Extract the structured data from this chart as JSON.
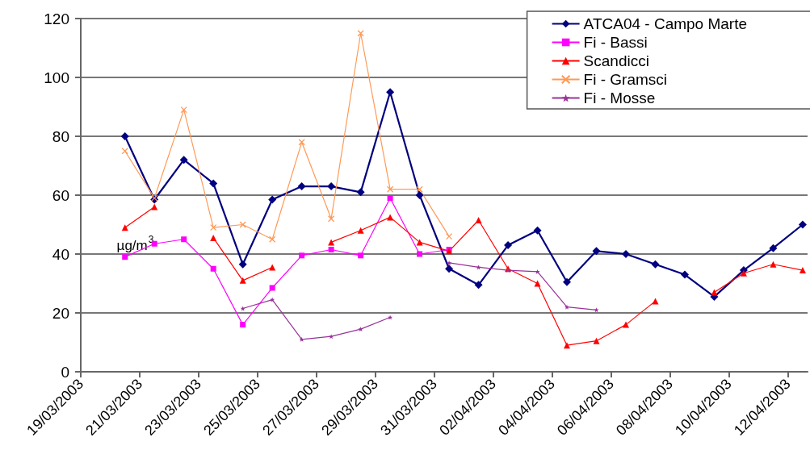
{
  "chart_data": {
    "type": "line",
    "x": [
      "2003-03-20T12:00",
      "2003-03-21T12:00",
      "2003-03-22T12:00",
      "2003-03-23T12:00",
      "2003-03-24T12:00",
      "2003-03-25T12:00",
      "2003-03-26T12:00",
      "2003-03-27T12:00",
      "2003-03-28T12:00",
      "2003-03-29T12:00",
      "2003-03-30T12:00",
      "2003-03-31T12:00",
      "2003-04-01T12:00",
      "2003-04-02T12:00",
      "2003-04-03T12:00",
      "2003-04-04T12:00",
      "2003-04-05T12:00",
      "2003-04-06T12:00",
      "2003-04-07T12:00",
      "2003-04-08T12:00",
      "2003-04-09T12:00",
      "2003-04-10T12:00",
      "2003-04-11T12:00",
      "2003-04-12T12:00"
    ],
    "series": [
      {
        "name": "ATCA04 - Campo Marte",
        "color": "#000080",
        "marker": "diamond",
        "values": [
          80,
          58.5,
          72,
          64,
          36.5,
          58.5,
          63,
          63,
          61,
          95,
          60,
          35,
          29.5,
          43,
          48,
          30.5,
          41,
          40,
          36.5,
          33,
          25.5,
          34.5,
          42,
          50
        ]
      },
      {
        "name": "Fi - Bassi",
        "color": "#ff00ff",
        "marker": "square",
        "values": [
          39,
          43.5,
          45,
          35,
          16,
          28.5,
          39.5,
          41.5,
          39.5,
          59,
          40,
          41.5,
          null,
          null,
          null,
          null,
          null,
          null,
          null,
          null,
          null,
          null,
          null,
          null
        ]
      },
      {
        "name": "Scandicci",
        "color": "#ff0000",
        "marker": "triangle",
        "values": [
          49,
          56,
          null,
          45.5,
          31,
          35.5,
          null,
          44,
          48,
          52.5,
          44,
          41,
          51.5,
          35,
          30,
          9,
          10.5,
          16,
          24,
          null,
          27,
          33.5,
          36.5,
          34.5
        ]
      },
      {
        "name": "Fi - Gramsci",
        "color": "#ff9955",
        "marker": "cross",
        "values": [
          75,
          59,
          89,
          49,
          50,
          45,
          78,
          52,
          115,
          62,
          62,
          46,
          null,
          null,
          null,
          null,
          null,
          null,
          null,
          null,
          null,
          null,
          null,
          null
        ]
      },
      {
        "name": "Fi - Mosse",
        "color": "#993399",
        "marker": "star",
        "values": [
          null,
          null,
          null,
          null,
          21.5,
          24.5,
          11,
          12,
          14.5,
          18.5,
          null,
          37,
          35.5,
          34.5,
          34,
          22,
          21,
          null,
          null,
          null,
          null,
          null,
          null,
          null
        ]
      }
    ],
    "xlim": [
      "2003-03-19",
      "2003-04-12T16:00"
    ],
    "xticks": [
      {
        "value": "2003-03-19",
        "label": "19/03/2003"
      },
      {
        "value": "2003-03-21",
        "label": "21/03/2003"
      },
      {
        "value": "2003-03-23",
        "label": "23/03/2003"
      },
      {
        "value": "2003-03-25",
        "label": "25/03/2003"
      },
      {
        "value": "2003-03-27",
        "label": "27/03/2003"
      },
      {
        "value": "2003-03-29",
        "label": "29/03/2003"
      },
      {
        "value": "2003-03-31",
        "label": "31/03/2003"
      },
      {
        "value": "2003-04-02",
        "label": "02/04/2003"
      },
      {
        "value": "2003-04-04",
        "label": "04/04/2003"
      },
      {
        "value": "2003-04-06",
        "label": "06/04/2003"
      },
      {
        "value": "2003-04-08",
        "label": "08/04/2003"
      },
      {
        "value": "2003-04-10",
        "label": "10/04/2003"
      },
      {
        "value": "2003-04-12",
        "label": "12/04/2003"
      }
    ],
    "ylim": [
      0,
      120
    ],
    "yticks": [
      0,
      20,
      40,
      60,
      80,
      100,
      120
    ],
    "annotations": [
      {
        "text": "µg/m$^{3}$",
        "x": "2003-03-20T12:00",
        "y": 40
      }
    ],
    "grid": "y",
    "legend": "top right"
  }
}
